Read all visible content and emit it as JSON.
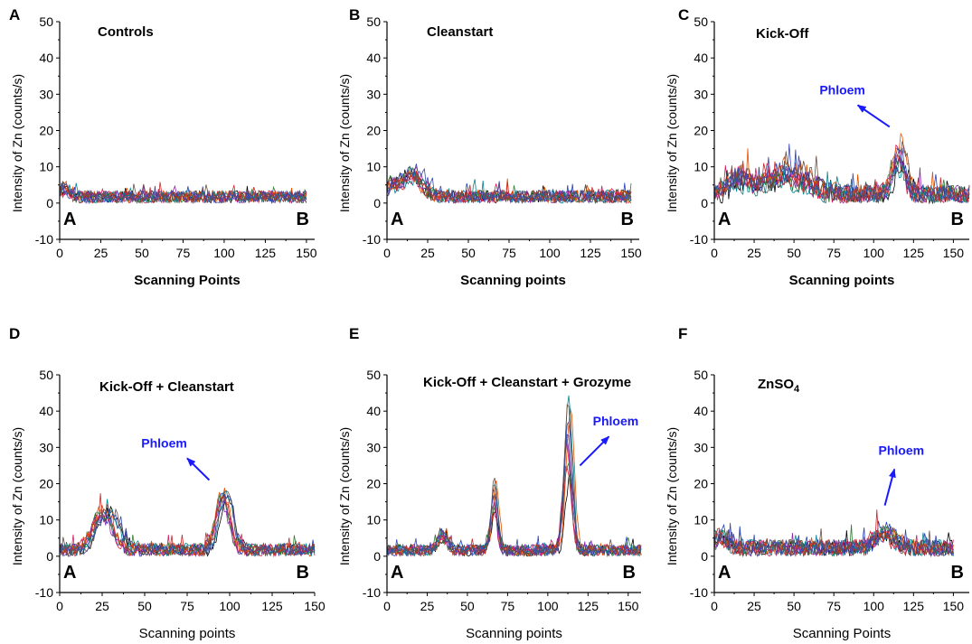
{
  "colors": {
    "series_palette": [
      "#000000",
      "#1f3fbf",
      "#d81b60",
      "#2e7d32",
      "#8e24aa",
      "#e65100",
      "#00838f",
      "#c62828",
      "#6d4c41",
      "#3949ab"
    ],
    "annotation": "#1a1aff"
  },
  "chart_data": [
    {
      "type": "line",
      "panel_label": "A",
      "title": "Controls",
      "title_sub": "",
      "xlabel": "Scanning Points",
      "xlabel_bold": true,
      "ylabel": "Intensity of Zn (counts/s)",
      "xlim": [
        0,
        155
      ],
      "ylim": [
        -10,
        50
      ],
      "xticks": [
        0,
        25,
        50,
        75,
        100,
        125,
        150
      ],
      "yticks": [
        -10,
        0,
        10,
        20,
        30,
        40,
        50
      ],
      "endpoint_labels": [
        "A",
        "B"
      ],
      "annotation": null,
      "n_points": 150,
      "n_series": 10,
      "profile": {
        "baseline": 1.5,
        "noise": 2.2,
        "peaks": [
          {
            "center": 3,
            "height": 2.5,
            "width": 3
          }
        ]
      }
    },
    {
      "type": "line",
      "panel_label": "B",
      "title": "Cleanstart",
      "title_sub": "",
      "xlabel": "Scanning points",
      "xlabel_bold": true,
      "ylabel": "Intensity of Zn (counts/s)",
      "xlim": [
        0,
        155
      ],
      "ylim": [
        -10,
        50
      ],
      "xticks": [
        0,
        25,
        50,
        75,
        100,
        125,
        150
      ],
      "yticks": [
        -10,
        0,
        10,
        20,
        30,
        40,
        50
      ],
      "endpoint_labels": [
        "A",
        "B"
      ],
      "annotation": null,
      "n_points": 150,
      "n_series": 10,
      "profile": {
        "baseline": 1.5,
        "noise": 2.4,
        "peaks": [
          {
            "center": 16,
            "height": 6,
            "width": 6
          },
          {
            "center": 3,
            "height": 3,
            "width": 3
          }
        ]
      }
    },
    {
      "type": "line",
      "panel_label": "C",
      "title": "Kick-Off",
      "title_sub": "",
      "xlabel": "Scanning points",
      "xlabel_bold": true,
      "ylabel": "Intensity of Zn (counts/s)",
      "xlim": [
        0,
        160
      ],
      "ylim": [
        -10,
        50
      ],
      "xticks": [
        0,
        25,
        50,
        75,
        100,
        125,
        150
      ],
      "yticks": [
        -10,
        0,
        10,
        20,
        30,
        40,
        50
      ],
      "endpoint_labels": [
        "A",
        "B"
      ],
      "annotation": {
        "text": "Phloem",
        "text_at": [
          66,
          30
        ],
        "arrow_from": [
          110,
          21
        ],
        "arrow_to": [
          90,
          27
        ]
      },
      "n_points": 160,
      "n_series": 10,
      "profile": {
        "baseline": 2,
        "noise": 3.5,
        "peaks": [
          {
            "center": 45,
            "height": 6,
            "width": 14
          },
          {
            "center": 116,
            "height": 11,
            "width": 4
          },
          {
            "center": 15,
            "height": 4,
            "width": 6
          }
        ]
      }
    },
    {
      "type": "line",
      "panel_label": "D",
      "title": "Kick-Off + Cleanstart",
      "title_sub": "",
      "xlabel": "Scanning points",
      "xlabel_bold": false,
      "ylabel": "Intensity of Zn (counts/s)",
      "xlim": [
        0,
        150
      ],
      "ylim": [
        -10,
        50
      ],
      "xticks": [
        0,
        25,
        50,
        75,
        100,
        125,
        150
      ],
      "yticks": [
        -10,
        0,
        10,
        20,
        30,
        40,
        50
      ],
      "endpoint_labels": [
        "A",
        "B"
      ],
      "annotation": {
        "text": "Phloem",
        "text_at": [
          48,
          30
        ],
        "arrow_from": [
          88,
          21
        ],
        "arrow_to": [
          75,
          27
        ]
      },
      "n_points": 150,
      "n_series": 10,
      "profile": {
        "baseline": 1.5,
        "noise": 2.4,
        "peaks": [
          {
            "center": 27,
            "height": 11,
            "width": 6
          },
          {
            "center": 97,
            "height": 16,
            "width": 4
          }
        ]
      }
    },
    {
      "type": "line",
      "panel_label": "E",
      "title": "Kick-Off + Cleanstart + Grozyme",
      "title_sub": "",
      "xlabel": "Scanning points",
      "xlabel_bold": false,
      "ylabel": "Intensity of Zn (counts/s)",
      "xlim": [
        0,
        158
      ],
      "ylim": [
        -10,
        50
      ],
      "xticks": [
        0,
        25,
        50,
        75,
        100,
        125,
        150
      ],
      "yticks": [
        -10,
        0,
        10,
        20,
        30,
        40,
        50
      ],
      "endpoint_labels": [
        "A",
        "B"
      ],
      "annotation": {
        "text": "Phloem",
        "text_at": [
          128,
          36
        ],
        "arrow_from": [
          120,
          25
        ],
        "arrow_to": [
          138,
          33
        ]
      },
      "n_points": 158,
      "n_series": 10,
      "profile": {
        "baseline": 1.5,
        "noise": 2,
        "peaks": [
          {
            "center": 113,
            "height": 30,
            "width": 2.5
          },
          {
            "center": 67,
            "height": 14,
            "width": 2
          },
          {
            "center": 35,
            "height": 4,
            "width": 3
          }
        ]
      }
    },
    {
      "type": "line",
      "panel_label": "F",
      "title": "ZnSO",
      "title_sub": "4",
      "xlabel": "Scanning Points",
      "xlabel_bold": false,
      "ylabel": "Intensity of Zn (counts/s)",
      "xlim": [
        0,
        160
      ],
      "ylim": [
        -10,
        50
      ],
      "xticks": [
        0,
        25,
        50,
        75,
        100,
        125,
        150
      ],
      "yticks": [
        -10,
        0,
        10,
        20,
        30,
        40,
        50
      ],
      "endpoint_labels": [
        "A",
        "B"
      ],
      "annotation": {
        "text": "Phloem",
        "text_at": [
          103,
          28
        ],
        "arrow_from": [
          107,
          14
        ],
        "arrow_to": [
          113,
          24
        ]
      },
      "n_points": 150,
      "n_series": 10,
      "profile": {
        "baseline": 2,
        "noise": 3,
        "peaks": [
          {
            "center": 5,
            "height": 4,
            "width": 4
          },
          {
            "center": 107,
            "height": 5,
            "width": 6
          }
        ]
      }
    }
  ]
}
